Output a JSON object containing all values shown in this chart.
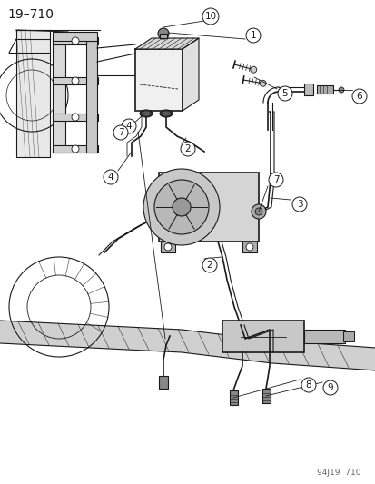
{
  "title_text": "19–710",
  "watermark_text": "94J19  710",
  "bg_color": "#ffffff",
  "line_color": "#1a1a1a",
  "callout_circle_color": "#ffffff",
  "title_fontsize": 10,
  "watermark_fontsize": 6.5,
  "figsize": [
    4.14,
    5.33
  ],
  "dpi": 100
}
